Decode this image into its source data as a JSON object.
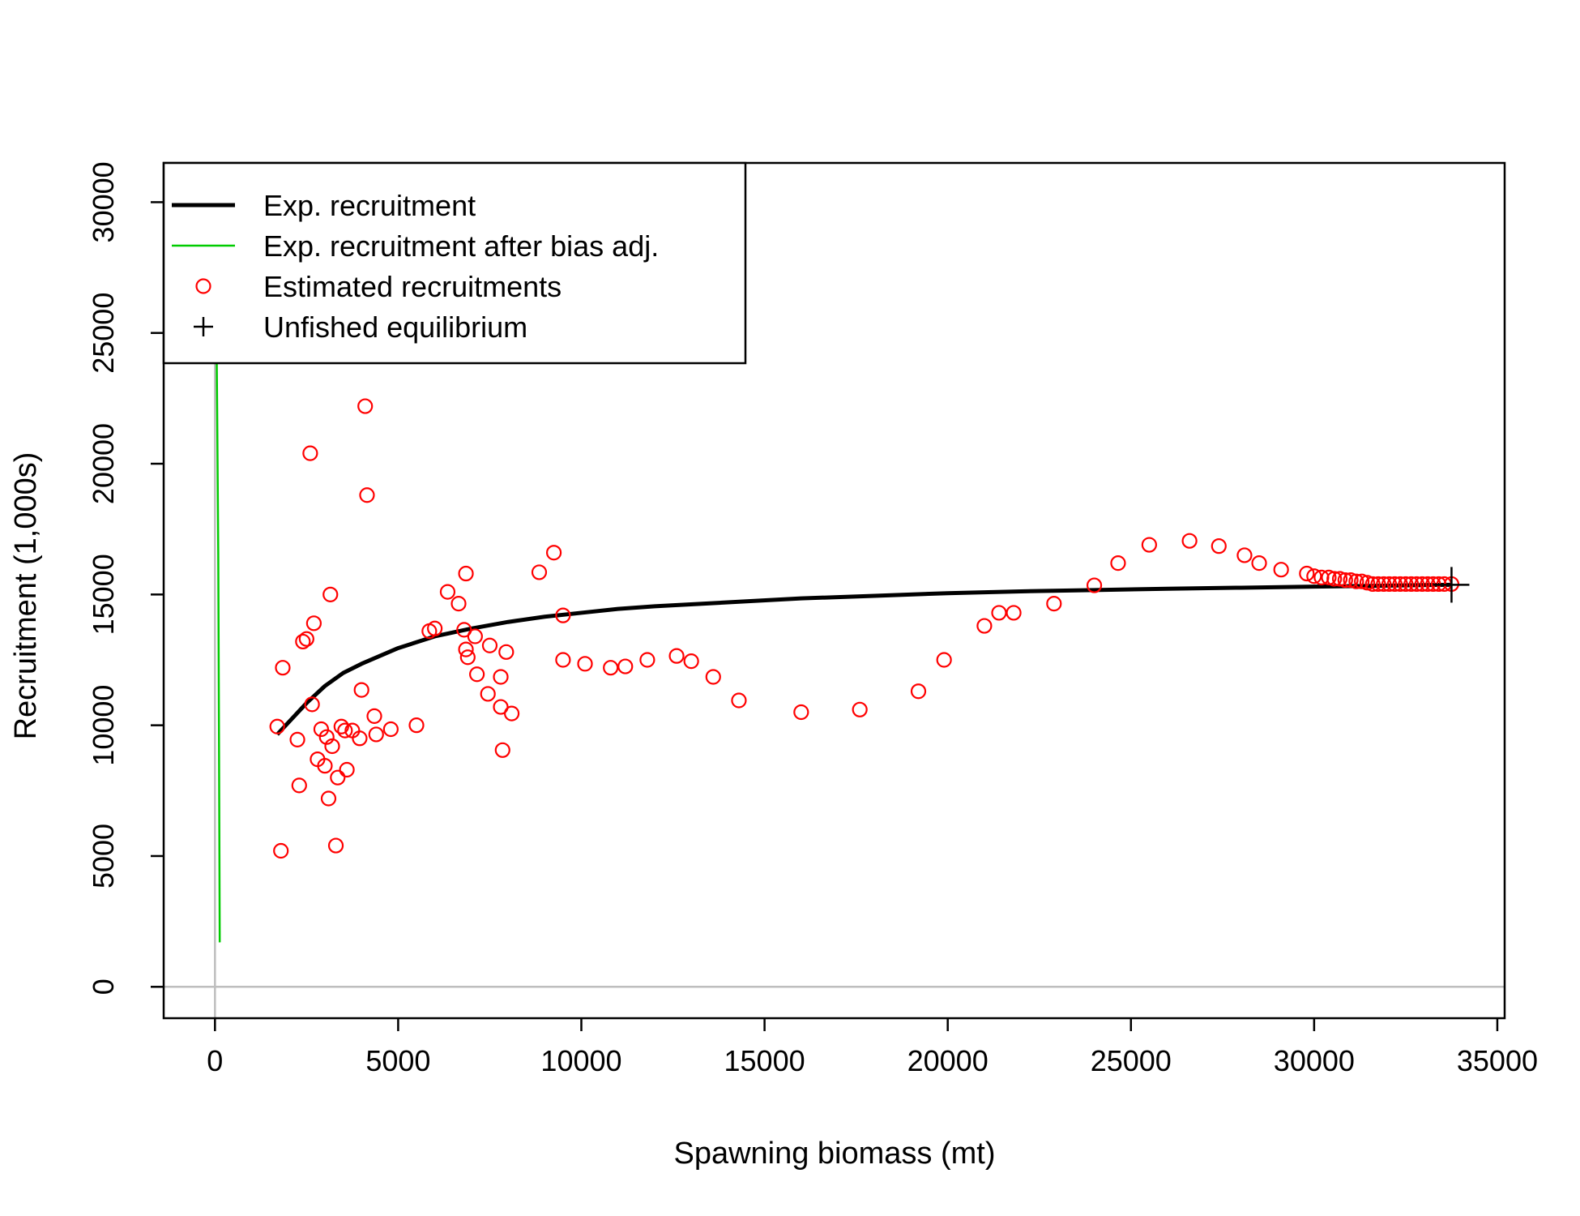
{
  "chart_data": {
    "type": "scatter",
    "title": "",
    "xlabel": "Spawning biomass (mt)",
    "ylabel": "Recruitment (1,000s)",
    "xlim": [
      -1400,
      35200
    ],
    "ylim": [
      -1200,
      31500
    ],
    "x_ticks": [
      0,
      5000,
      10000,
      15000,
      20000,
      25000,
      30000,
      35000
    ],
    "y_ticks": [
      0,
      5000,
      10000,
      15000,
      20000,
      25000,
      30000
    ],
    "x_tick_labels": [
      "0",
      "5000",
      "10000",
      "15000",
      "20000",
      "25000",
      "30000",
      "35000"
    ],
    "y_tick_labels": [
      "0",
      "5000",
      "10000",
      "15000",
      "20000",
      "25000",
      "30000"
    ],
    "grid": false,
    "legend_position": "top-left",
    "colors": {
      "exp_recruitment": "#000000",
      "bias_adj": "#00cc00",
      "estimated": "#ff0000",
      "unfished": "#000000",
      "reference_lines": "#bebebe"
    },
    "series": [
      {
        "name": "Exp. recruitment",
        "type": "line",
        "x": [
          1700,
          2000,
          2500,
          3000,
          3500,
          4000,
          5000,
          6000,
          7000,
          8000,
          9000,
          10000,
          11000,
          12000,
          14000,
          16000,
          18000,
          20000,
          22000,
          24000,
          26000,
          28000,
          30000,
          31500,
          33000,
          33750
        ],
        "y": [
          9650,
          10100,
          10850,
          11500,
          12000,
          12350,
          12950,
          13400,
          13700,
          13950,
          14150,
          14300,
          14450,
          14550,
          14700,
          14850,
          14950,
          15050,
          15120,
          15170,
          15220,
          15260,
          15300,
          15330,
          15360,
          15370
        ]
      },
      {
        "name": "Exp. recruitment after bias adj.",
        "type": "line",
        "x": [
          0,
          30,
          60,
          90,
          110,
          130
        ],
        "y": [
          31000,
          27000,
          22000,
          16500,
          9500,
          1700
        ]
      },
      {
        "name": "Estimated recruitments",
        "type": "scatter",
        "x": [
          1700,
          1850,
          1800,
          2250,
          2300,
          2400,
          2500,
          2600,
          2650,
          2700,
          2800,
          2900,
          3000,
          3050,
          3100,
          3150,
          3200,
          3300,
          3350,
          3450,
          3550,
          3600,
          3750,
          3950,
          4000,
          4100,
          4150,
          4350,
          4400,
          4800,
          5500,
          5850,
          6000,
          6350,
          6650,
          6800,
          6850,
          6850,
          6900,
          7100,
          7150,
          7450,
          7500,
          7800,
          7800,
          7850,
          7950,
          8100,
          8850,
          9250,
          9500,
          9500,
          10100,
          10800,
          11200,
          11800,
          12600,
          13000,
          13600,
          14300,
          16000,
          17600,
          19200,
          19900,
          21000,
          21400,
          21800,
          22900,
          24000,
          24650,
          25500,
          26600,
          27400,
          28100,
          28500,
          29100,
          29800,
          30000,
          30200,
          30400,
          30550,
          30700,
          30850,
          31000,
          31150,
          31300,
          31450,
          31600,
          31750,
          31900,
          32050,
          32200,
          32350,
          32500,
          32650,
          32800,
          32950,
          33100,
          33250,
          33400,
          33550,
          33750
        ],
        "y": [
          9950,
          12200,
          5200,
          9450,
          7700,
          13200,
          13300,
          20400,
          10800,
          13900,
          8700,
          9850,
          8450,
          9550,
          7200,
          15000,
          9200,
          5400,
          8000,
          9950,
          9800,
          8300,
          9800,
          9500,
          11350,
          22200,
          18800,
          10350,
          9650,
          9850,
          10000,
          13600,
          13700,
          15100,
          14650,
          13650,
          15800,
          12900,
          12600,
          13400,
          11950,
          11200,
          13050,
          10700,
          11850,
          9050,
          12800,
          10450,
          15850,
          16600,
          14200,
          12500,
          12350,
          12200,
          12250,
          12500,
          12650,
          12450,
          11850,
          10950,
          10500,
          10600,
          11300,
          12500,
          13800,
          14300,
          14300,
          14650,
          15350,
          16200,
          16900,
          17050,
          16850,
          16500,
          16200,
          15950,
          15800,
          15700,
          15650,
          15650,
          15600,
          15600,
          15550,
          15550,
          15500,
          15500,
          15450,
          15400,
          15400,
          15400,
          15400,
          15400,
          15400,
          15400,
          15400,
          15400,
          15400,
          15400,
          15400,
          15400,
          15400,
          15400
        ]
      },
      {
        "name": "Unfished equilibrium",
        "type": "point",
        "x": [
          33750
        ],
        "y": [
          15370
        ]
      }
    ]
  }
}
